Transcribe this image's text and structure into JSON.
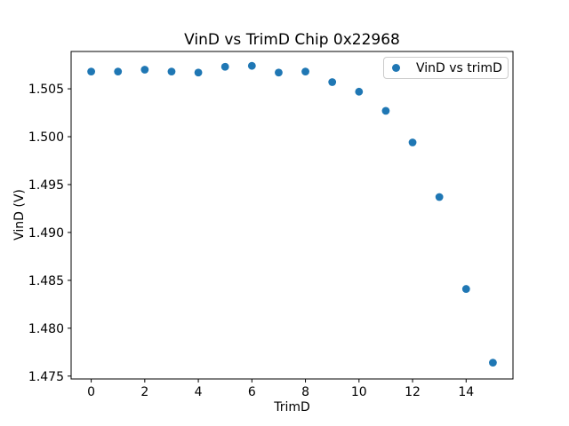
{
  "figure": {
    "title": "VinD vs TrimD Chip 0x22968",
    "xlabel": "TrimD",
    "ylabel": "VinD (V)",
    "legend": {
      "label": "VinD vs trimD"
    }
  },
  "chart_data": {
    "type": "scatter",
    "title": "VinD vs TrimD Chip 0x22968",
    "xlabel": "TrimD",
    "ylabel": "VinD (V)",
    "legend_entries": [
      "VinD vs trimD"
    ],
    "legend_position": "upper right",
    "marker_color": "#1f77b4",
    "x": [
      0,
      1,
      2,
      3,
      4,
      5,
      6,
      7,
      8,
      9,
      10,
      11,
      12,
      13,
      14,
      15
    ],
    "y": [
      1.5068,
      1.5068,
      1.507,
      1.5068,
      1.5067,
      1.5073,
      1.5074,
      1.5067,
      1.5068,
      1.5057,
      1.5047,
      1.5027,
      1.4994,
      1.4937,
      1.4841,
      1.4764
    ],
    "xlim": [
      -0.75,
      15.75
    ],
    "ylim": [
      1.4747,
      1.5089
    ],
    "xticks": [
      0,
      2,
      4,
      6,
      8,
      10,
      12,
      14
    ],
    "yticks": [
      1.475,
      1.48,
      1.485,
      1.49,
      1.495,
      1.5,
      1.505
    ],
    "ytick_decimals": 3,
    "grid": false
  }
}
